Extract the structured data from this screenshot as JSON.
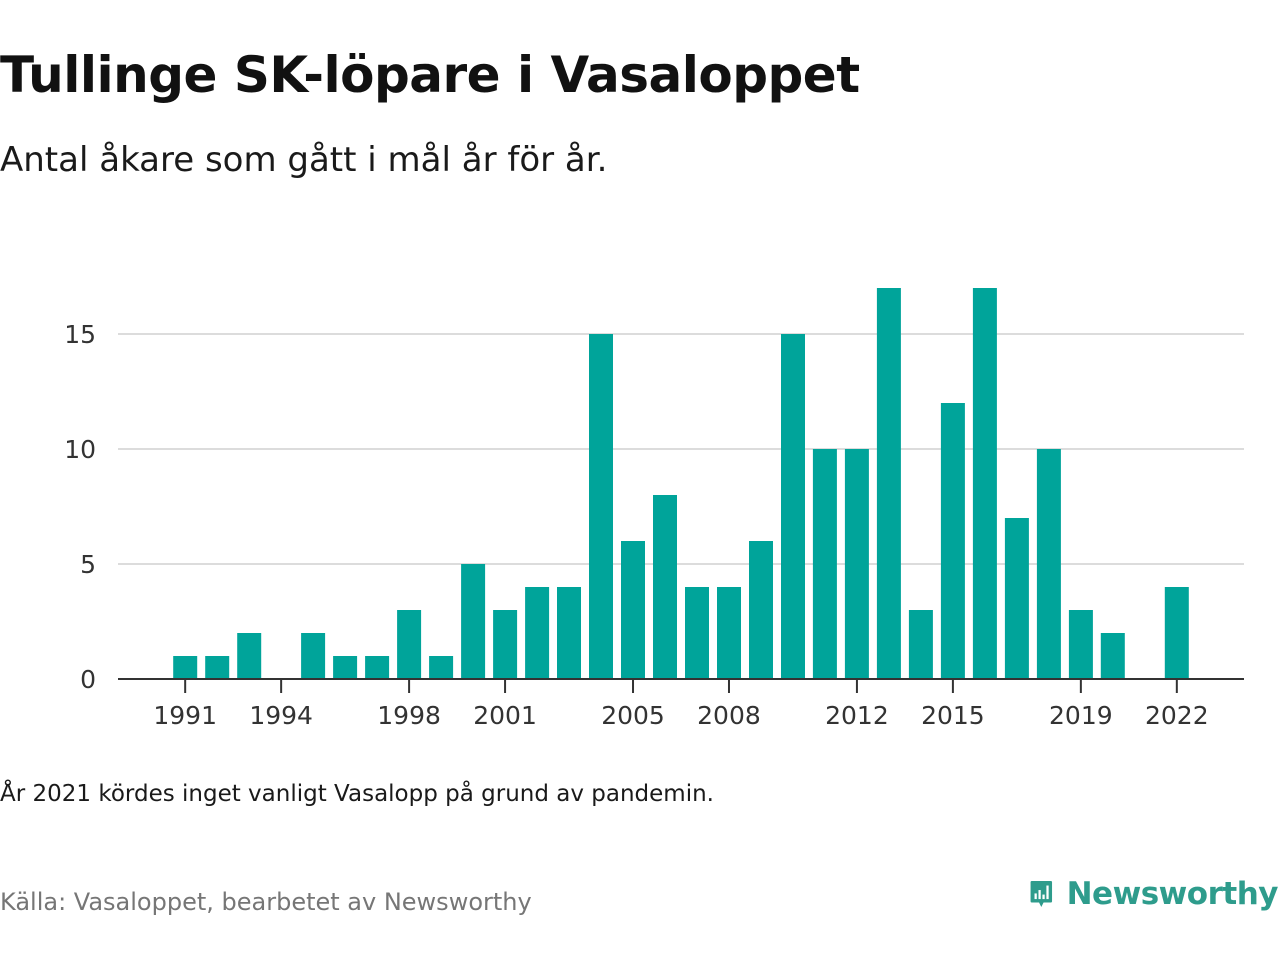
{
  "header": {
    "title": "Tullinge SK-löpare i Vasaloppet",
    "subtitle": "Antal åkare som gått i mål år för år."
  },
  "footer": {
    "note": "År 2021 kördes inget vanligt Vasalopp på grund av pandemin.",
    "source": "Källa: Vasaloppet, bearbetet av Newsworthy",
    "brand_name": "Newsworthy",
    "brand_icon": "newsworthy-logo-icon",
    "brand_color": "#2e9c8c"
  },
  "chart_data": {
    "type": "bar",
    "title": "Tullinge SK-löpare i Vasaloppet",
    "subtitle": "Antal åkare som gått i mål år för år.",
    "xlabel": "",
    "ylabel": "",
    "x_range": [
      1988.9,
      2024.1
    ],
    "ylim": [
      0,
      18
    ],
    "grid": true,
    "bar_color": "#00a49a",
    "y_ticks": [
      0,
      5,
      10,
      15
    ],
    "x_ticks": [
      1991,
      1994,
      1998,
      2001,
      2005,
      2008,
      2012,
      2015,
      2019,
      2022
    ],
    "categories": [
      1991,
      1992,
      1993,
      1994,
      1995,
      1996,
      1997,
      1998,
      1999,
      2000,
      2001,
      2002,
      2003,
      2004,
      2005,
      2006,
      2007,
      2008,
      2009,
      2010,
      2011,
      2012,
      2013,
      2014,
      2015,
      2016,
      2017,
      2018,
      2019,
      2020,
      2021,
      2022
    ],
    "values": [
      1,
      1,
      2,
      0,
      2,
      1,
      1,
      3,
      1,
      5,
      3,
      4,
      4,
      15,
      6,
      8,
      4,
      4,
      6,
      15,
      10,
      10,
      17,
      3,
      12,
      17,
      7,
      10,
      3,
      2,
      0,
      4
    ]
  }
}
